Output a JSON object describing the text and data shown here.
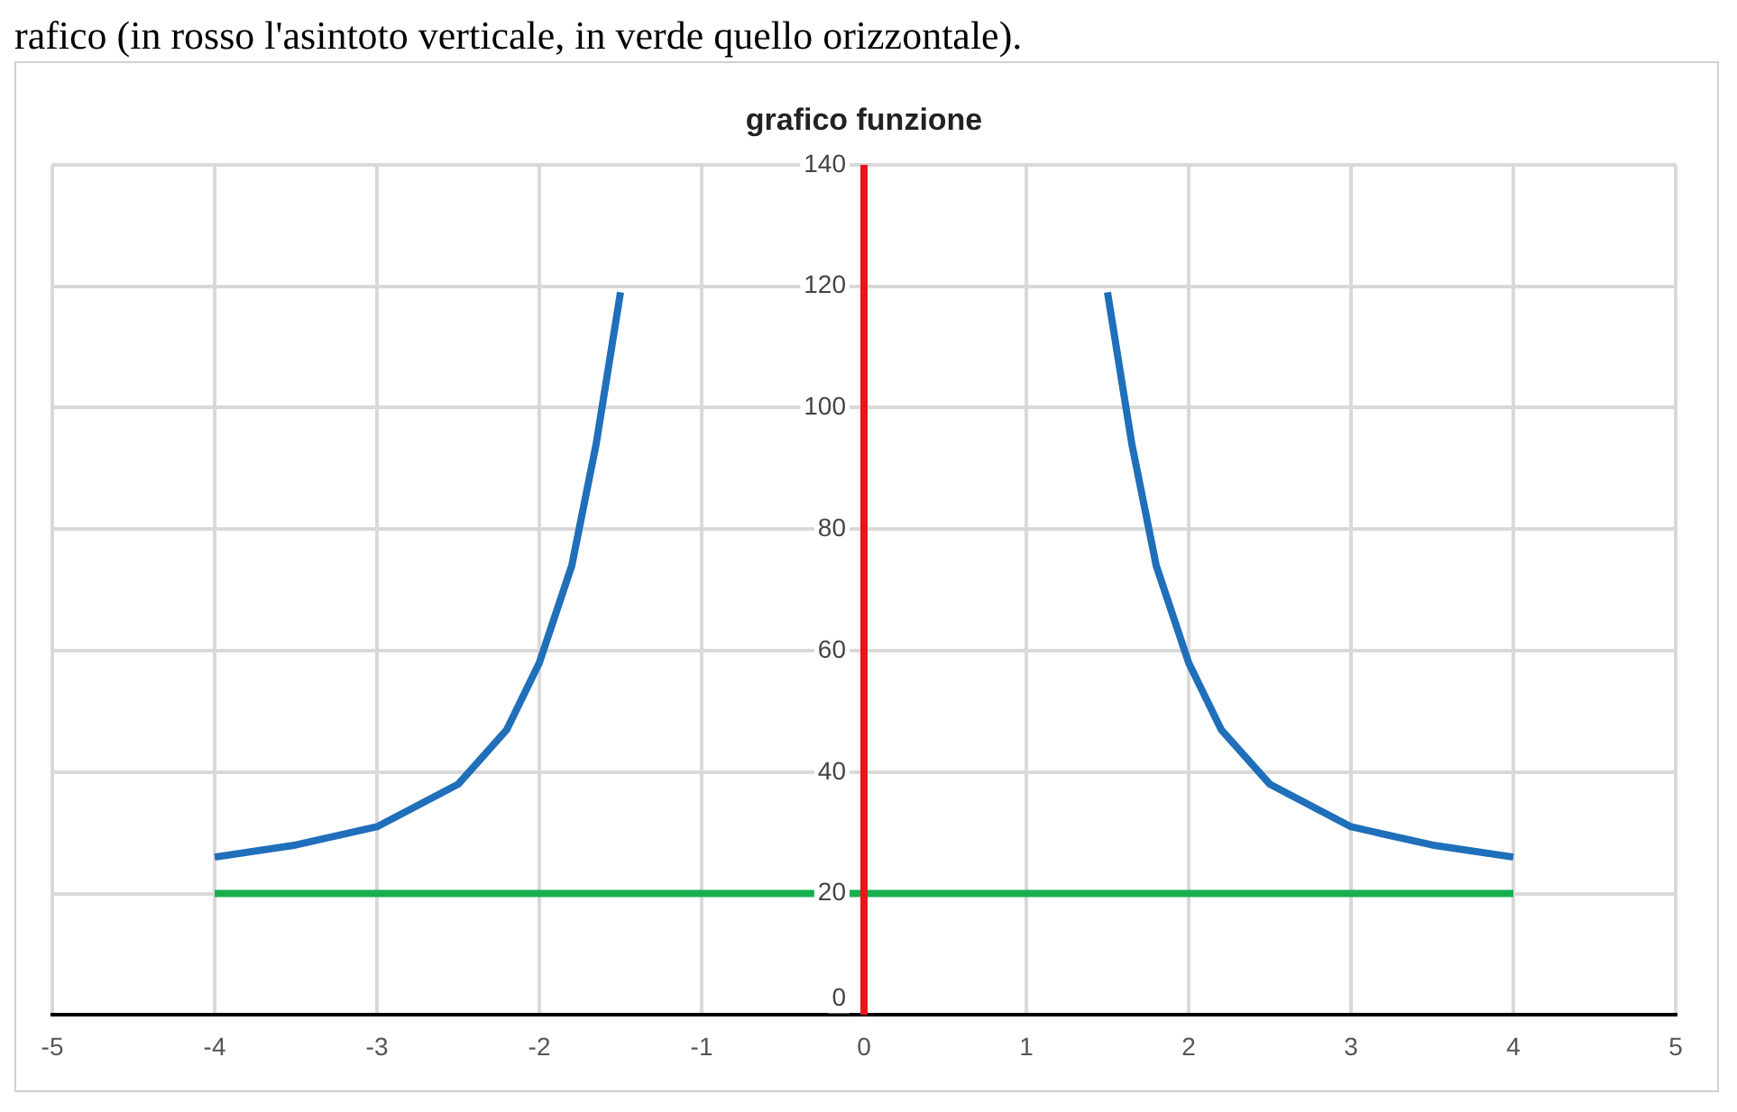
{
  "chart_data": {
    "type": "line",
    "title": "grafico funzione",
    "annotations": [
      "rafico (in rosso l'asintoto verticale, in verde quello orizzontale)."
    ],
    "xlim": [
      -5,
      5
    ],
    "xticks": [
      -5,
      -4,
      -3,
      -2,
      -1,
      0,
      1,
      2,
      3,
      4,
      5
    ],
    "ylim": [
      0,
      140
    ],
    "yticks": [
      0,
      20,
      40,
      60,
      80,
      100,
      120,
      140
    ],
    "grid": true,
    "marker": "none",
    "line_style": "solid",
    "series": [
      {
        "color": "#1f6fba",
        "x": [
          -4,
          -3.5,
          -3,
          -2.5,
          -2.2,
          -2,
          -1.8,
          -1.65,
          -1.5
        ],
        "values": [
          26,
          28,
          31,
          38,
          47,
          58,
          74,
          94,
          119
        ]
      },
      {
        "color": "#1f6fba",
        "x": [
          1.5,
          1.65,
          1.8,
          2,
          2.2,
          2.5,
          3,
          3.5,
          4
        ],
        "values": [
          119,
          94,
          74,
          58,
          47,
          38,
          31,
          28,
          26
        ]
      },
      {
        "color": "#e8161b",
        "x": [
          0,
          0
        ],
        "values": [
          0,
          140
        ]
      },
      {
        "color": "#16b04f",
        "x": [
          -4,
          4
        ],
        "values": [
          20,
          20
        ]
      }
    ]
  }
}
